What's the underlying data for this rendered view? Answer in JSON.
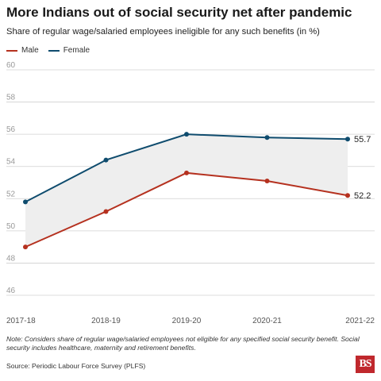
{
  "header": {
    "title": "More Indians out of social security net after pandemic",
    "subtitle": "Share of regular wage/salaried employees ineligible for any such benefits (in %)"
  },
  "legend": {
    "male_label": "Male",
    "female_label": "Female"
  },
  "colors": {
    "male": "#b5311f",
    "female": "#0f4c6e",
    "band": "#eeeeee",
    "grid": "#d0d0d0",
    "tick_text": "#999999"
  },
  "chart_data": {
    "type": "line",
    "title": "More Indians out of social security net after pandemic",
    "subtitle": "Share of regular wage/salaried employees ineligible for any such benefits (in %)",
    "xlabel": "",
    "ylabel": "",
    "categories": [
      "2017-18",
      "2018-19",
      "2019-20",
      "2020-21",
      "2021-22"
    ],
    "ylim": [
      46,
      60
    ],
    "yticks": [
      46,
      48,
      50,
      52,
      54,
      56,
      58,
      60
    ],
    "grid": true,
    "legend_position": "top-left",
    "series": [
      {
        "name": "Male",
        "values": [
          49.0,
          51.2,
          53.6,
          53.1,
          52.2
        ],
        "end_label": "52.2"
      },
      {
        "name": "Female",
        "values": [
          51.8,
          54.4,
          56.0,
          55.8,
          55.7
        ],
        "end_label": "55.7"
      }
    ]
  },
  "footer": {
    "note": "Note: Considers share of regular wage/salaried employees not eligible for any specified social security benefit. Social security includes healthcare, maternity and retirement benefits.",
    "source": "Source: Periodic Labour Force Survey (PLFS)",
    "logo_text": "BS"
  }
}
